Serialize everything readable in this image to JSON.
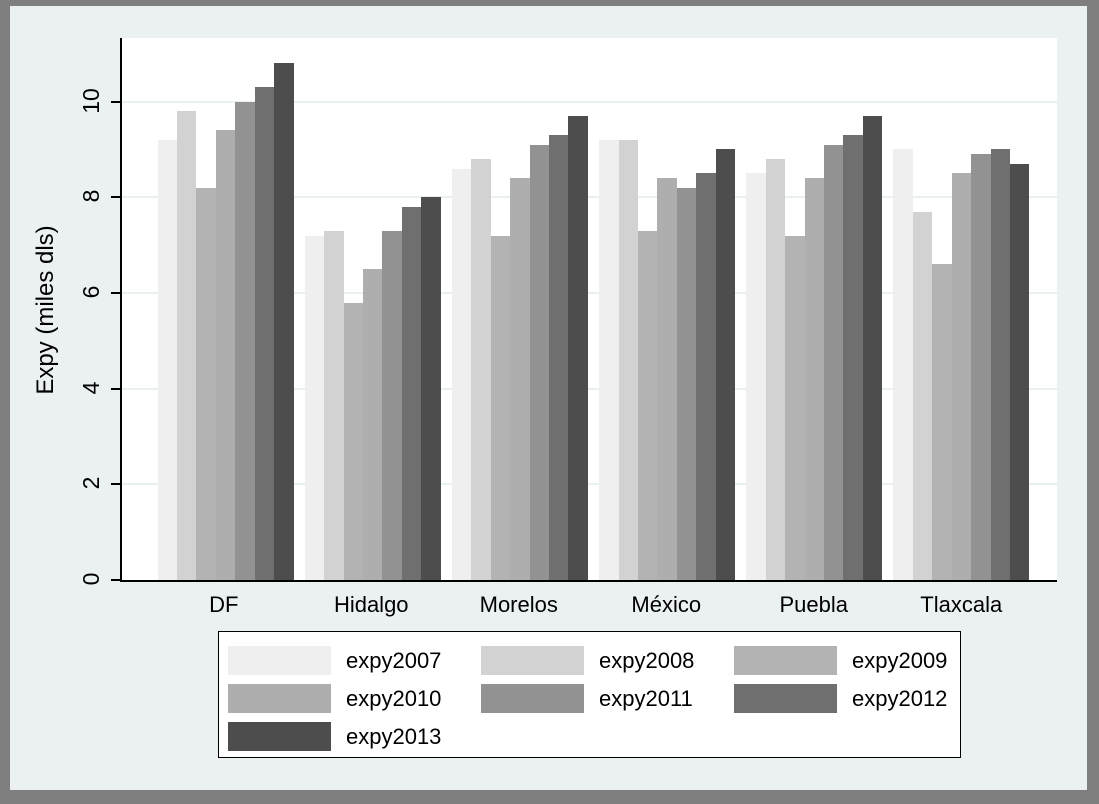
{
  "figure": {
    "frame_color": "#7e7e7e",
    "background_color": "#ebf1f2",
    "plot_background_color": "#ffffff",
    "gridline_color": "#e8f0f1",
    "axis_color": "#000000"
  },
  "chart_data": {
    "type": "bar",
    "title": "",
    "xlabel": "",
    "ylabel": "Expy (miles dls)",
    "ylim": [
      0,
      11.33
    ],
    "yticks": [
      0,
      2,
      4,
      6,
      8,
      10
    ],
    "grid": true,
    "legend_position": "bottom",
    "categories": [
      "DF",
      "Hidalgo",
      "Morelos",
      "México",
      "Puebla",
      "Tlaxcala"
    ],
    "series": [
      {
        "name": "expy2007",
        "color": "#efefef",
        "values": [
          9.2,
          7.2,
          8.6,
          9.2,
          8.5,
          9.0
        ]
      },
      {
        "name": "expy2008",
        "color": "#d2d2d2",
        "values": [
          9.8,
          7.3,
          8.8,
          9.2,
          8.8,
          7.7
        ]
      },
      {
        "name": "expy2009",
        "color": "#b3b3b3",
        "values": [
          8.2,
          5.8,
          7.2,
          7.3,
          7.2,
          6.6
        ]
      },
      {
        "name": "expy2010",
        "color": "#aeaeae",
        "values": [
          9.4,
          6.5,
          8.4,
          8.4,
          8.4,
          8.5
        ]
      },
      {
        "name": "expy2011",
        "color": "#929292",
        "values": [
          10.0,
          7.3,
          9.1,
          8.2,
          9.1,
          8.9
        ]
      },
      {
        "name": "expy2012",
        "color": "#6f6f6f",
        "values": [
          10.3,
          7.8,
          9.3,
          8.5,
          9.3,
          9.0
        ]
      },
      {
        "name": "expy2013",
        "color": "#4d4d4d",
        "values": [
          10.8,
          8.0,
          9.7,
          9.0,
          9.7,
          8.7
        ]
      }
    ]
  }
}
